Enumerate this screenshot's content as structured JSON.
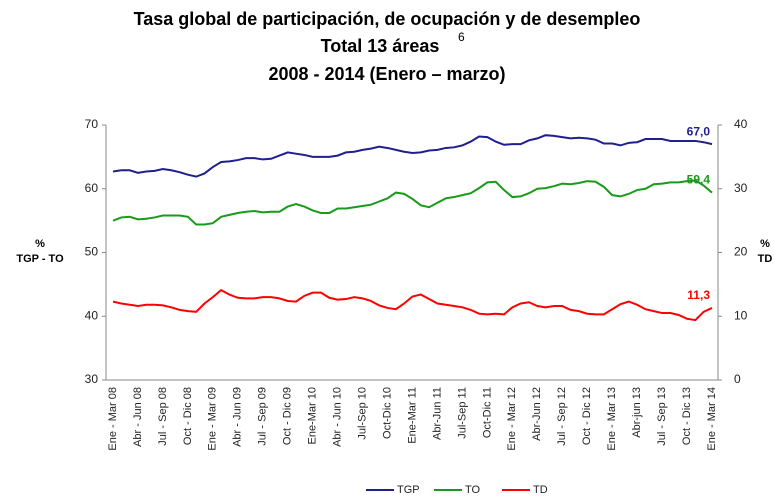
{
  "chart_data": {
    "type": "line",
    "title": [
      "Tasa global de participación, de ocupación y de desempleo",
      "Total 13 áreas",
      "2008 - 2014 (Enero – marzo)"
    ],
    "title_footnote": "6",
    "ylabel": [
      "%",
      "TGP - TO"
    ],
    "y2label": [
      "%",
      "TD"
    ],
    "categories": [
      "Ene - Mar 08",
      null,
      null,
      "Abr - Jun 08",
      null,
      null,
      "Jul - Sep 08",
      null,
      null,
      "Oct - Dic 08",
      null,
      null,
      "Ene - Mar 09",
      null,
      null,
      "Abr - Jun 09",
      null,
      null,
      "Jul - Sep 09",
      null,
      null,
      "Oct - Dic 09",
      null,
      null,
      "Ene-Mar 10",
      null,
      null,
      "Abr - Jun 10",
      null,
      null,
      "Jul-Sep 10",
      null,
      null,
      "Oct-Dic 10",
      null,
      null,
      "Ene-Mar 11",
      null,
      null,
      "Abr-Jun 11",
      null,
      null,
      "Jul-Sep 11",
      null,
      null,
      "Oct-Dic 11",
      null,
      null,
      "Ene - Mar 12",
      null,
      null,
      "Abr-Jun 12",
      null,
      null,
      "Jul - Sep 12",
      null,
      null,
      "Oct - Dic 12",
      null,
      null,
      "Ene - Mar 13",
      null,
      null,
      "Abr-jun 13",
      null,
      null,
      "Jul - Sep 13",
      null,
      null,
      "Oct - Dic 13",
      null,
      null,
      "Ene - Mar 14"
    ],
    "series": [
      {
        "name": "TGP",
        "color": "#1f1f8f",
        "axis": "y",
        "values": [
          62.7,
          62.9,
          62.9,
          62.5,
          62.7,
          62.8,
          63.1,
          62.9,
          62.6,
          62.2,
          61.9,
          62.4,
          63.4,
          64.2,
          64.3,
          64.5,
          64.8,
          64.8,
          64.6,
          64.7,
          65.2,
          65.7,
          65.5,
          65.3,
          65.0,
          65.0,
          65.0,
          65.2,
          65.7,
          65.8,
          66.1,
          66.3,
          66.6,
          66.4,
          66.1,
          65.8,
          65.6,
          65.7,
          66.0,
          66.1,
          66.4,
          66.5,
          66.8,
          67.4,
          68.2,
          68.1,
          67.4,
          66.9,
          67.0,
          67.0,
          67.6,
          67.9,
          68.4,
          68.3,
          68.1,
          67.9,
          68.0,
          67.9,
          67.7,
          67.1,
          67.1,
          66.8,
          67.2,
          67.3,
          67.8,
          67.8,
          67.8,
          67.5,
          67.5,
          67.5,
          67.5,
          67.3,
          67.0
        ],
        "value_labels": [
          null,
          null,
          null,
          null,
          null,
          null,
          null,
          null,
          null,
          null,
          null,
          null,
          null,
          null,
          null,
          null,
          null,
          null,
          null,
          null,
          null,
          null,
          null,
          null,
          null,
          null,
          null,
          null,
          null,
          null,
          null,
          null,
          null,
          null,
          null,
          null,
          null,
          null,
          null,
          null,
          null,
          null,
          null,
          null,
          null,
          null,
          null,
          null,
          null,
          null,
          null,
          null,
          null,
          null,
          null,
          null,
          null,
          null,
          null,
          null,
          null,
          null,
          null,
          null,
          null,
          null,
          null,
          null,
          null,
          null,
          null,
          null,
          "67,0"
        ]
      },
      {
        "name": "TO",
        "color": "#1a9a1a",
        "axis": "y",
        "values": [
          55.0,
          55.5,
          55.6,
          55.2,
          55.3,
          55.5,
          55.8,
          55.8,
          55.8,
          55.6,
          54.4,
          54.4,
          54.6,
          55.6,
          55.9,
          56.2,
          56.4,
          56.5,
          56.3,
          56.4,
          56.4,
          57.2,
          57.6,
          57.2,
          56.6,
          56.2,
          56.2,
          56.9,
          56.9,
          57.1,
          57.3,
          57.5,
          58.0,
          58.5,
          59.4,
          59.2,
          58.4,
          57.4,
          57.1,
          57.8,
          58.5,
          58.7,
          59.0,
          59.3,
          60.1,
          61.0,
          61.1,
          59.8,
          58.7,
          58.8,
          59.3,
          60.0,
          60.1,
          60.4,
          60.8,
          60.7,
          60.9,
          61.2,
          61.1,
          60.3,
          59.0,
          58.8,
          59.2,
          59.8,
          60.0,
          60.7,
          60.8,
          61.0,
          61.0,
          61.2,
          61.3,
          60.5,
          59.4
        ],
        "value_labels": [
          null,
          null,
          null,
          null,
          null,
          null,
          null,
          null,
          null,
          null,
          null,
          null,
          null,
          null,
          null,
          null,
          null,
          null,
          null,
          null,
          null,
          null,
          null,
          null,
          null,
          null,
          null,
          null,
          null,
          null,
          null,
          null,
          null,
          null,
          null,
          null,
          null,
          null,
          null,
          null,
          null,
          null,
          null,
          null,
          null,
          null,
          null,
          null,
          null,
          null,
          null,
          null,
          null,
          null,
          null,
          null,
          null,
          null,
          null,
          null,
          null,
          null,
          null,
          null,
          null,
          null,
          null,
          null,
          null,
          null,
          null,
          null,
          "59,4"
        ]
      },
      {
        "name": "TD",
        "color": "#ff0000",
        "axis": "y2",
        "values": [
          12.3,
          12.0,
          11.8,
          11.6,
          11.8,
          11.8,
          11.7,
          11.4,
          11.0,
          10.8,
          10.7,
          12.0,
          13.0,
          14.1,
          13.4,
          12.9,
          12.8,
          12.8,
          13.0,
          13.0,
          12.8,
          12.4,
          12.3,
          13.2,
          13.7,
          13.7,
          12.9,
          12.6,
          12.7,
          13.0,
          12.8,
          12.4,
          11.7,
          11.3,
          11.1,
          12.0,
          13.1,
          13.4,
          12.7,
          12.0,
          11.8,
          11.6,
          11.4,
          11.0,
          10.4,
          10.3,
          10.4,
          10.3,
          11.4,
          12.0,
          12.2,
          11.6,
          11.4,
          11.6,
          11.6,
          11.0,
          10.8,
          10.4,
          10.3,
          10.3,
          11.1,
          11.9,
          12.3,
          11.8,
          11.1,
          10.8,
          10.5,
          10.5,
          10.2,
          9.6,
          9.4,
          10.7,
          11.3
        ],
        "value_labels": [
          null,
          null,
          null,
          null,
          null,
          null,
          null,
          null,
          null,
          null,
          null,
          null,
          null,
          null,
          null,
          null,
          null,
          null,
          null,
          null,
          null,
          null,
          null,
          null,
          null,
          null,
          null,
          null,
          null,
          null,
          null,
          null,
          null,
          null,
          null,
          null,
          null,
          null,
          null,
          null,
          null,
          null,
          null,
          null,
          null,
          null,
          null,
          null,
          null,
          null,
          null,
          null,
          null,
          null,
          null,
          null,
          null,
          null,
          null,
          null,
          null,
          null,
          null,
          null,
          null,
          null,
          null,
          null,
          null,
          null,
          null,
          null,
          "11,3"
        ]
      }
    ],
    "ylim": [
      30,
      70
    ],
    "yticks": [
      30,
      40,
      50,
      60,
      70
    ],
    "y2lim": [
      0,
      40
    ],
    "y2ticks": [
      0,
      10,
      20,
      30,
      40
    ],
    "grid": false,
    "legend": "bottom"
  }
}
